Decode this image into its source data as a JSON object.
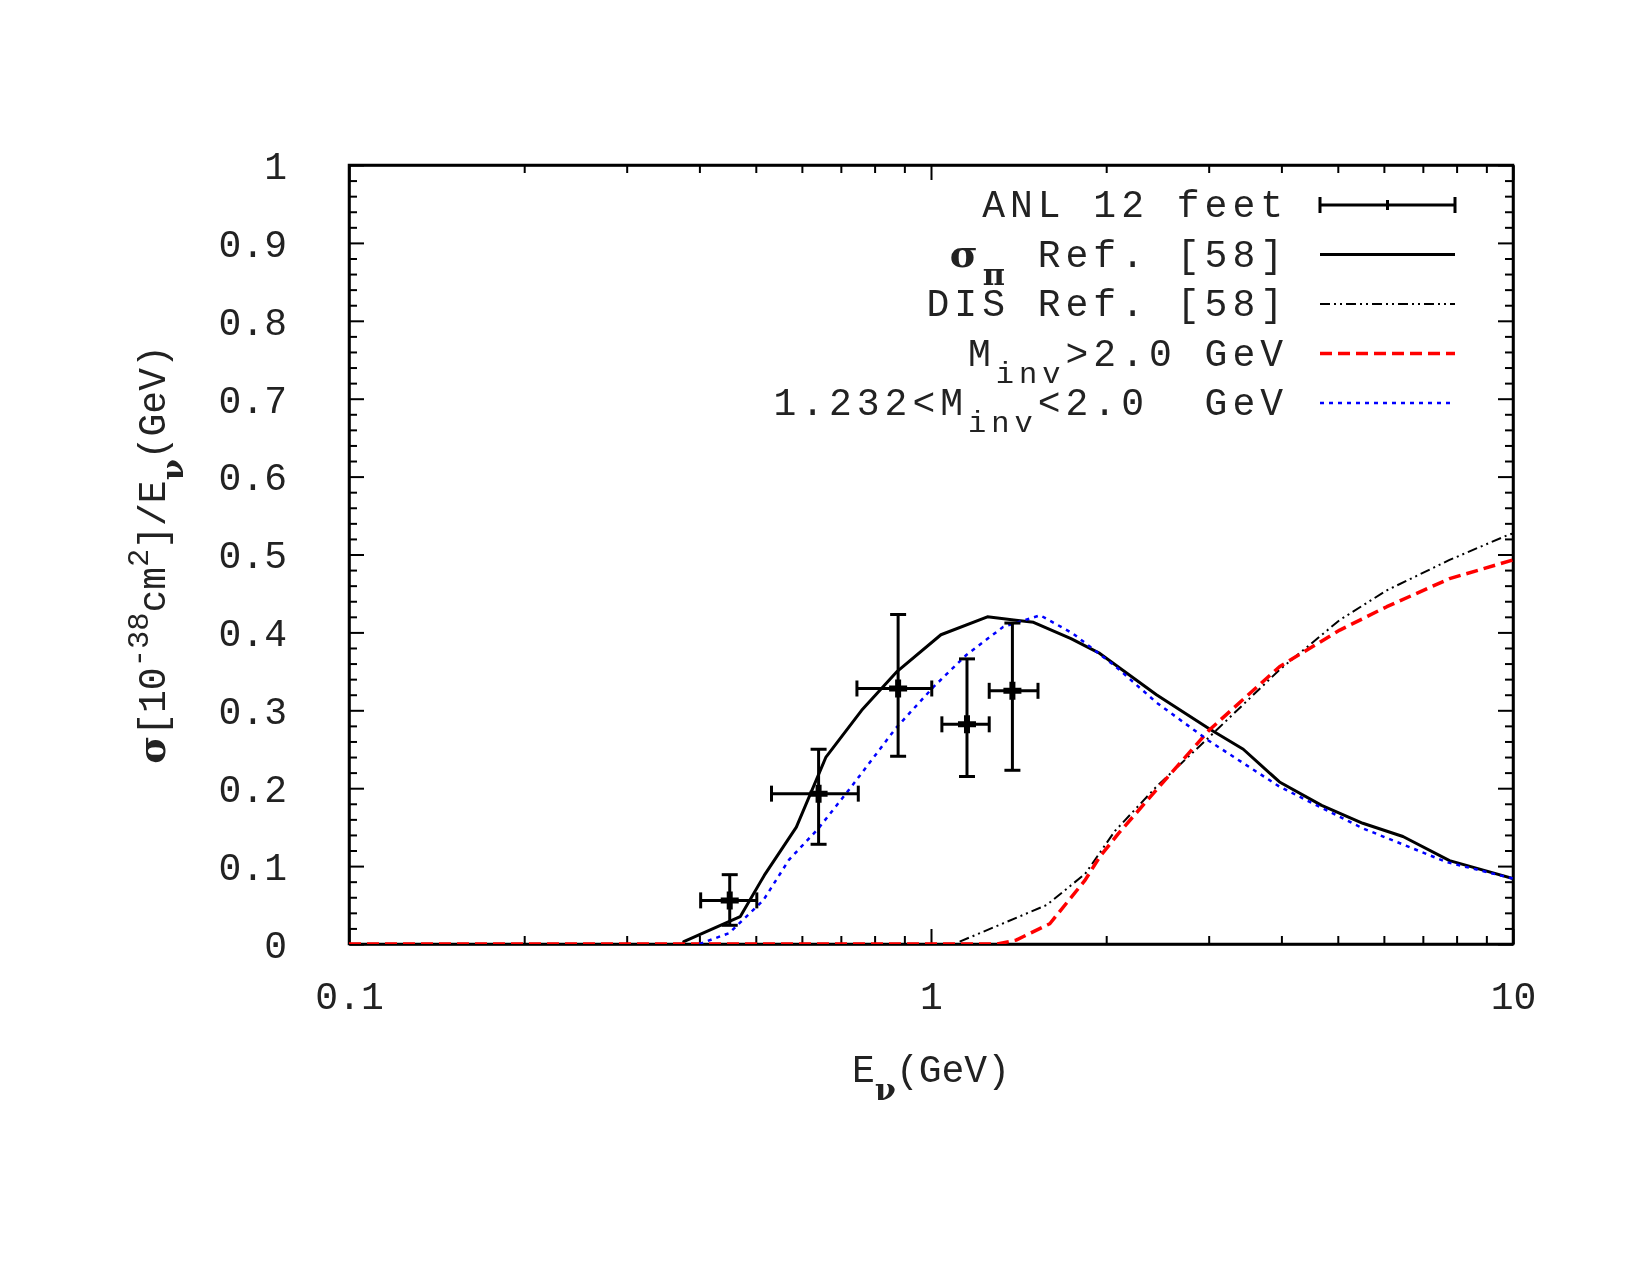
{
  "chart_data": {
    "type": "line",
    "xlabel": "E$_{ν}$(GeV)",
    "ylabel": "σ[10$^{-38}$cm$^{2}$]/E$_{ν}$(GeV)",
    "log": "x",
    "xlim": [
      0.1,
      10
    ],
    "xticks": [
      0.1,
      {
        "value": 0.2,
        "label": null
      },
      {
        "value": 0.3,
        "label": null
      },
      {
        "value": 0.4,
        "label": null
      },
      {
        "value": 0.5,
        "label": null
      },
      {
        "value": 0.6,
        "label": null
      },
      {
        "value": 0.7,
        "label": null
      },
      {
        "value": 0.8,
        "label": null
      },
      {
        "value": 0.9,
        "label": null
      },
      1,
      {
        "value": 2,
        "label": null
      },
      {
        "value": 3,
        "label": null
      },
      {
        "value": 4,
        "label": null
      },
      {
        "value": 5,
        "label": null
      },
      {
        "value": 6,
        "label": null
      },
      {
        "value": 7,
        "label": null
      },
      {
        "value": 8,
        "label": null
      },
      {
        "value": 9,
        "label": null
      },
      10
    ],
    "ylim": [
      0,
      1
    ],
    "yticks": [
      0,
      {
        "value": 0.02,
        "label": null
      },
      {
        "value": 0.04,
        "label": null
      },
      {
        "value": 0.06,
        "label": null
      },
      {
        "value": 0.08,
        "label": null
      },
      0.1,
      {
        "value": 0.12,
        "label": null
      },
      {
        "value": 0.14,
        "label": null
      },
      {
        "value": 0.16,
        "label": null
      },
      {
        "value": 0.18,
        "label": null
      },
      0.2,
      {
        "value": 0.22,
        "label": null
      },
      {
        "value": 0.24,
        "label": null
      },
      {
        "value": 0.26,
        "label": null
      },
      {
        "value": 0.28,
        "label": null
      },
      0.3,
      {
        "value": 0.32,
        "label": null
      },
      {
        "value": 0.34,
        "label": null
      },
      {
        "value": 0.36,
        "label": null
      },
      {
        "value": 0.38,
        "label": null
      },
      0.4,
      {
        "value": 0.42,
        "label": null
      },
      {
        "value": 0.44,
        "label": null
      },
      {
        "value": 0.46,
        "label": null
      },
      {
        "value": 0.48,
        "label": null
      },
      0.5,
      {
        "value": 0.52,
        "label": null
      },
      {
        "value": 0.54,
        "label": null
      },
      {
        "value": 0.56,
        "label": null
      },
      {
        "value": 0.58,
        "label": null
      },
      0.6,
      {
        "value": 0.62,
        "label": null
      },
      {
        "value": 0.64,
        "label": null
      },
      {
        "value": 0.66,
        "label": null
      },
      {
        "value": 0.68,
        "label": null
      },
      0.7,
      {
        "value": 0.72,
        "label": null
      },
      {
        "value": 0.74,
        "label": null
      },
      {
        "value": 0.76,
        "label": null
      },
      {
        "value": 0.78,
        "label": null
      },
      0.8,
      {
        "value": 0.82,
        "label": null
      },
      {
        "value": 0.84,
        "label": null
      },
      {
        "value": 0.86,
        "label": null
      },
      {
        "value": 0.88,
        "label": null
      },
      0.9,
      {
        "value": 0.92,
        "label": null
      },
      {
        "value": 0.94,
        "label": null
      },
      {
        "value": 0.96,
        "label": null
      },
      {
        "value": 0.98,
        "label": null
      },
      1
    ],
    "grid": false,
    "legend": "top right",
    "marker": "none",
    "series": [
      {
        "name": "ANL 12 feet",
        "type": "scatter",
        "marker": "cross",
        "color": "#000000",
        "x": [
          0.451,
          0.641,
          0.878,
          1.153,
          1.38
        ],
        "values": [
          0.056,
          0.193,
          0.328,
          0.282,
          0.325
        ],
        "errors": [
          [
            0.024,
            0.089
          ],
          [
            0.128,
            0.25
          ],
          [
            0.241,
            0.423
          ],
          [
            0.215,
            0.366
          ],
          [
            0.223,
            0.412
          ]
        ],
        "xerrors": [
          [
            0.402,
            0.502
          ],
          [
            0.532,
            0.75
          ],
          [
            0.746,
            1.003
          ],
          [
            1.044,
            1.259
          ],
          [
            1.259,
            1.527
          ]
        ]
      },
      {
        "name": "σ$_{π}$ Ref. [58]",
        "line_style": "solid",
        "color": "#000000",
        "x": [
          0.376,
          0.47,
          0.517,
          0.587,
          0.66,
          0.76,
          0.875,
          1.04,
          1.25,
          1.5,
          1.74,
          1.95,
          2.44,
          3.01,
          3.44,
          3.97,
          4.69,
          5.52,
          6.47,
          7.78,
          10
        ],
        "values": [
          0.003,
          0.035,
          0.088,
          0.15,
          0.24,
          0.3,
          0.35,
          0.397,
          0.42,
          0.413,
          0.392,
          0.373,
          0.32,
          0.276,
          0.25,
          0.208,
          0.178,
          0.155,
          0.138,
          0.107,
          0.084
        ]
      },
      {
        "name": "DIS Ref. [58]",
        "line_style": "dashdot",
        "color": "#000000",
        "x": [
          1.12,
          1.58,
          1.84,
          2.07,
          2.44,
          3.01,
          3.97,
          5.04,
          6.07,
          7.78,
          9.8,
          10
        ],
        "values": [
          0.003,
          0.05,
          0.09,
          0.145,
          0.202,
          0.266,
          0.352,
          0.416,
          0.454,
          0.493,
          0.525,
          0.527
        ]
      },
      {
        "name": "M$_{inv}$>2.0 GeV",
        "line_style": "dashed",
        "color": "#ff0000",
        "x": [
          0.1,
          1.3,
          1.4,
          1.6,
          1.84,
          1.95,
          2.1,
          2.44,
          3.01,
          3.97,
          5.04,
          6.07,
          7.78,
          10
        ],
        "values": [
          0,
          0,
          0.005,
          0.026,
          0.082,
          0.112,
          0.142,
          0.198,
          0.275,
          0.356,
          0.403,
          0.433,
          0.469,
          0.493
        ]
      },
      {
        "name": "1.232<M$_{inv}$<2.0  GeV",
        "line_style": "dotted",
        "color": "#0000ff",
        "x": [
          0.4,
          0.45,
          0.515,
          0.57,
          0.64,
          0.73,
          0.87,
          1.01,
          1.15,
          1.33,
          1.54,
          1.75,
          2.07,
          2.44,
          3.0,
          3.97,
          5.5,
          7.7,
          10
        ],
        "values": [
          0,
          0.014,
          0.056,
          0.108,
          0.148,
          0.202,
          0.277,
          0.33,
          0.371,
          0.407,
          0.422,
          0.399,
          0.357,
          0.31,
          0.261,
          0.202,
          0.149,
          0.105,
          0.084
        ]
      }
    ]
  }
}
